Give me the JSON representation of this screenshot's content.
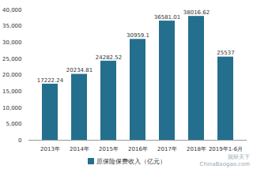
{
  "chart_data": {
    "type": "bar",
    "categories": [
      "2013年",
      "2014年",
      "2015年",
      "2016年",
      "2017年",
      "2018年",
      "2019年1-6月"
    ],
    "series": [
      {
        "name": "原保险保费收入（亿元）",
        "color": "#246f8e",
        "values": [
          17222.24,
          20234.81,
          24282.52,
          30959.1,
          36581.01,
          38016.62,
          25537
        ]
      }
    ],
    "ylim": [
      0,
      40000
    ],
    "yticks": [
      0,
      {
        "value": 5000,
        "label": "5,000"
      },
      {
        "value": 10000,
        "label": "10,000"
      },
      {
        "value": 15000,
        "label": "15,000"
      },
      {
        "value": 20000,
        "label": "20,000"
      },
      {
        "value": 25000,
        "label": "25,000"
      },
      {
        "value": 30000,
        "label": "30,000"
      },
      {
        "value": 35000,
        "label": "35,000"
      },
      {
        "value": 40000,
        "label": "40,000"
      }
    ],
    "grid": false,
    "data_labels": true,
    "legend": "bottom",
    "annotations": [
      "观研天下",
      "ChinaBaogao.com"
    ]
  }
}
